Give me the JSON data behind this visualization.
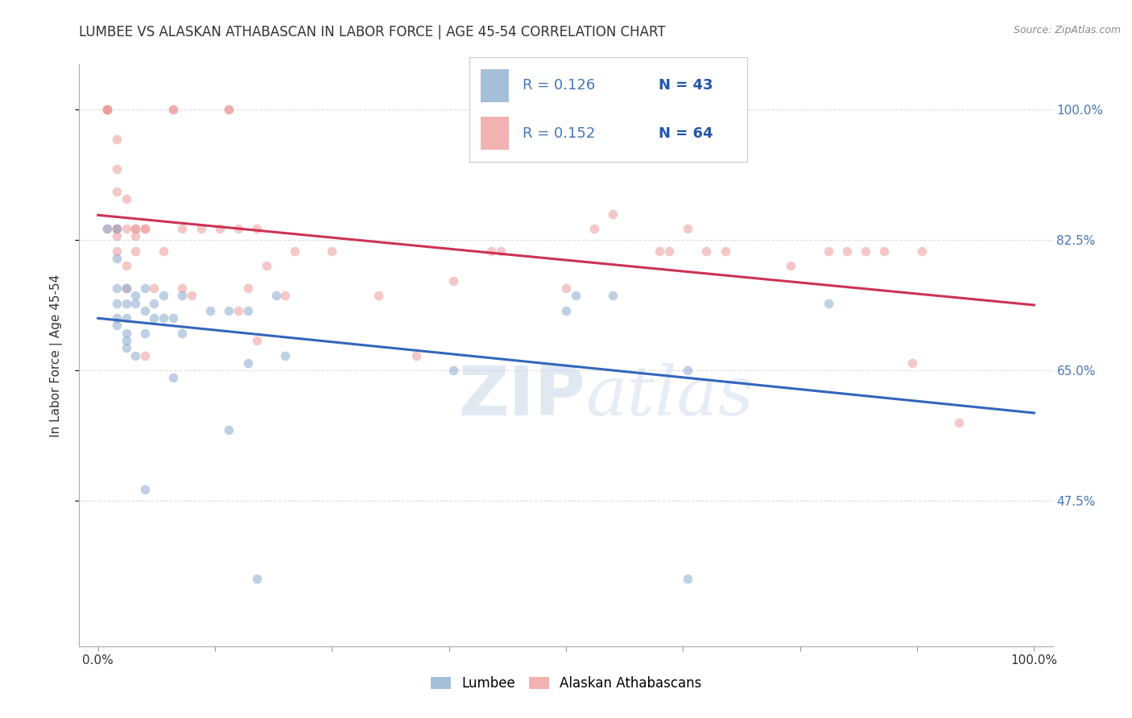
{
  "title": "LUMBEE VS ALASKAN ATHABASCAN IN LABOR FORCE | AGE 45-54 CORRELATION CHART",
  "source": "Source: ZipAtlas.com",
  "ylabel": "In Labor Force | Age 45-54",
  "watermark": "ZIPatlas",
  "xlim": [
    -0.02,
    1.02
  ],
  "ylim": [
    0.28,
    1.06
  ],
  "ytick_positions": [
    0.475,
    0.65,
    0.825,
    1.0
  ],
  "ytick_labels": [
    "47.5%",
    "65.0%",
    "82.5%",
    "100.0%"
  ],
  "lumbee_color": "#89AACC",
  "athabascan_color": "#EE9999",
  "lumbee_line_color": "#3366BB",
  "athabascan_line_color": "#CC3355",
  "legend_R_lumbee": "R = 0.126",
  "legend_N_lumbee": "N = 43",
  "legend_R_athabascan": "R = 0.152",
  "legend_N_athabascan": "N = 64",
  "lumbee_x": [
    0.01,
    0.02,
    0.02,
    0.02,
    0.02,
    0.02,
    0.02,
    0.03,
    0.03,
    0.03,
    0.03,
    0.03,
    0.03,
    0.04,
    0.04,
    0.04,
    0.05,
    0.05,
    0.05,
    0.05,
    0.06,
    0.06,
    0.07,
    0.07,
    0.08,
    0.08,
    0.09,
    0.09,
    0.12,
    0.14,
    0.14,
    0.16,
    0.16,
    0.17,
    0.19,
    0.2,
    0.38,
    0.5,
    0.51,
    0.55,
    0.63,
    0.63,
    0.78
  ],
  "lumbee_y": [
    0.84,
    0.84,
    0.8,
    0.76,
    0.74,
    0.72,
    0.71,
    0.76,
    0.74,
    0.72,
    0.7,
    0.69,
    0.68,
    0.75,
    0.74,
    0.67,
    0.76,
    0.73,
    0.7,
    0.49,
    0.74,
    0.72,
    0.75,
    0.72,
    0.72,
    0.64,
    0.75,
    0.7,
    0.73,
    0.73,
    0.57,
    0.73,
    0.66,
    0.37,
    0.75,
    0.67,
    0.65,
    0.73,
    0.75,
    0.75,
    0.65,
    0.37,
    0.74
  ],
  "athabascan_x": [
    0.01,
    0.01,
    0.01,
    0.01,
    0.01,
    0.02,
    0.02,
    0.02,
    0.02,
    0.02,
    0.02,
    0.02,
    0.03,
    0.03,
    0.03,
    0.03,
    0.04,
    0.04,
    0.04,
    0.04,
    0.05,
    0.05,
    0.05,
    0.06,
    0.07,
    0.08,
    0.08,
    0.09,
    0.09,
    0.1,
    0.11,
    0.13,
    0.14,
    0.14,
    0.15,
    0.15,
    0.16,
    0.17,
    0.17,
    0.18,
    0.2,
    0.21,
    0.25,
    0.3,
    0.34,
    0.38,
    0.42,
    0.43,
    0.5,
    0.53,
    0.55,
    0.6,
    0.61,
    0.63,
    0.65,
    0.67,
    0.74,
    0.78,
    0.8,
    0.82,
    0.84,
    0.87,
    0.88,
    0.92
  ],
  "athabascan_y": [
    1.0,
    1.0,
    1.0,
    1.0,
    0.84,
    0.96,
    0.92,
    0.89,
    0.84,
    0.84,
    0.83,
    0.81,
    0.88,
    0.84,
    0.79,
    0.76,
    0.84,
    0.84,
    0.83,
    0.81,
    0.84,
    0.84,
    0.67,
    0.76,
    0.81,
    1.0,
    1.0,
    0.84,
    0.76,
    0.75,
    0.84,
    0.84,
    1.0,
    1.0,
    0.84,
    0.73,
    0.76,
    0.84,
    0.69,
    0.79,
    0.75,
    0.81,
    0.81,
    0.75,
    0.67,
    0.77,
    0.81,
    0.81,
    0.76,
    0.84,
    0.86,
    0.81,
    0.81,
    0.84,
    0.81,
    0.81,
    0.79,
    0.81,
    0.81,
    0.81,
    0.81,
    0.66,
    0.81,
    0.58
  ],
  "background_color": "#FFFFFF",
  "grid_color": "#DDDDDD",
  "title_fontsize": 12,
  "axis_label_fontsize": 11,
  "tick_fontsize": 11,
  "marker_size": 70,
  "marker_alpha": 0.55
}
